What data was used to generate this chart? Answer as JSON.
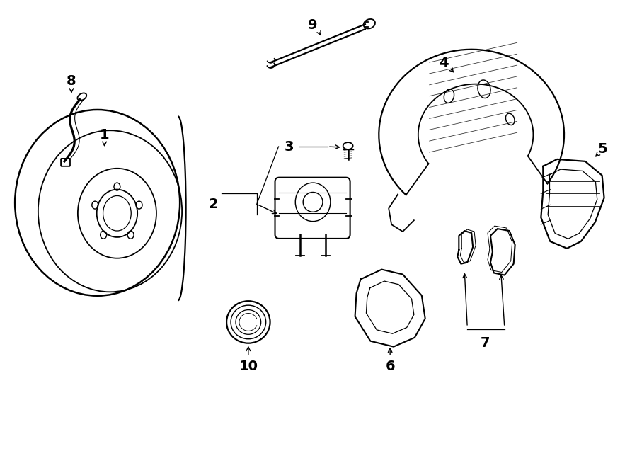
{
  "bg_color": "#ffffff",
  "line_color": "#000000",
  "line_width": 1.3,
  "fig_width": 9.0,
  "fig_height": 6.61,
  "font_size": 14
}
